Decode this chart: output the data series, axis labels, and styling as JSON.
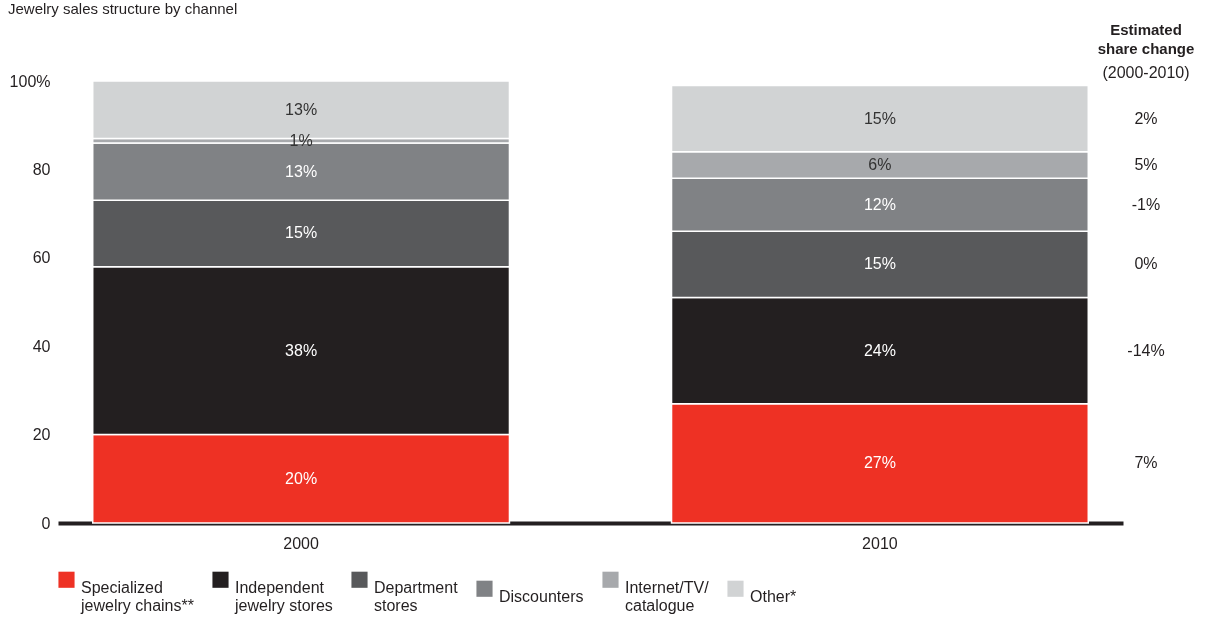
{
  "chart_data": {
    "type": "bar",
    "title": "Jewelry sales structure by channel",
    "stacked": true,
    "legend": "bottom",
    "grid": false,
    "categories": [
      "2000",
      "2010"
    ],
    "series": [
      {
        "name": "Specialized jewelry chains**",
        "color": "#ee3124",
        "values": [
          20,
          27
        ],
        "value_labels": [
          "20%",
          "27%"
        ]
      },
      {
        "name": "Independent jewelry stores",
        "color": "#231f20",
        "values": [
          38,
          24
        ],
        "value_labels": [
          "38%",
          "24%"
        ]
      },
      {
        "name": "Department stores",
        "color": "#58595b",
        "values": [
          15,
          15
        ],
        "value_labels": [
          "15%",
          "15%"
        ]
      },
      {
        "name": "Discounters",
        "color": "#808285",
        "values": [
          13,
          12
        ],
        "value_labels": [
          "13%",
          "12%"
        ]
      },
      {
        "name": "Internet/TV/catalogue",
        "color": "#a7a9ac",
        "values": [
          1,
          6
        ],
        "value_labels": [
          "1%",
          "6%"
        ]
      },
      {
        "name": "Other*",
        "color": "#d1d3d4",
        "values": [
          13,
          15
        ],
        "value_labels": [
          "13%",
          "15%"
        ]
      }
    ],
    "ylim": [
      0,
      100
    ],
    "yticks": [
      0,
      20,
      40,
      60,
      80,
      {
        "value": 100,
        "label": "100%"
      }
    ],
    "annotations": [
      "Estimated share change",
      "(2000-2010)",
      "2%",
      "5%",
      "-1%",
      "0%",
      "-14%",
      "7%"
    ]
  }
}
